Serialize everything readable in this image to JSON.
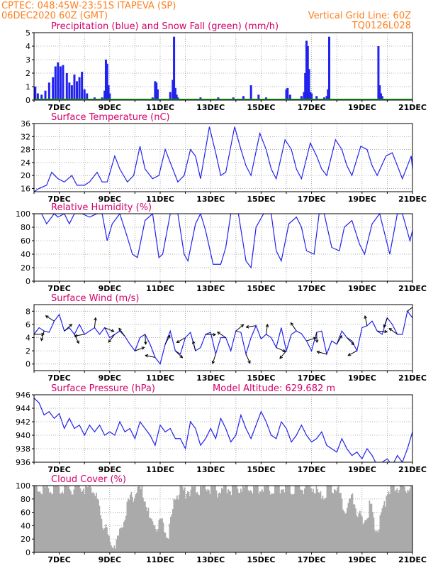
{
  "header": {
    "line1": "CPTEC:   048:45W-23:51S   ITAPEVA (SP)",
    "line2": "06DEC2020 60Z (GMT)",
    "grid_note": "Vertical Grid Line: 60Z",
    "code": "TQ0126L028"
  },
  "colors": {
    "header": "#ff7f1f",
    "title": "#d4006a",
    "series": "#2222ee",
    "snow": "#20a020",
    "cloud": "#aaaaaa",
    "grid": "#999999"
  },
  "x_axis": {
    "day_labels": [
      "7DEC",
      "9DEC",
      "11DEC",
      "13DEC",
      "15DEC",
      "17DEC",
      "19DEC",
      "21DEC"
    ],
    "range_days": [
      6,
      21
    ]
  },
  "chart_data": [
    {
      "id": "precip",
      "type": "bar",
      "title": "Precipitation (blue) and Snow Fall (green) (mm/h)",
      "ylim": [
        0,
        5
      ],
      "yticks": [
        0,
        1,
        2,
        3,
        4,
        5
      ],
      "series": [
        {
          "name": "Precipitation",
          "x_day": [
            6.05,
            6.15,
            6.3,
            6.45,
            6.6,
            6.75,
            6.85,
            6.95,
            7.05,
            7.15,
            7.3,
            7.4,
            7.5,
            7.6,
            7.7,
            7.8,
            7.9,
            8.0,
            8.1,
            8.4,
            8.7,
            8.8,
            8.85,
            8.9,
            8.95,
            9.0,
            10.7,
            10.8,
            10.85,
            10.9,
            11.4,
            11.5,
            11.55,
            11.6,
            11.65,
            11.7,
            12.6,
            12.9,
            13.3,
            13.6,
            13.9,
            14.3,
            14.6,
            14.9,
            15.1,
            15.2,
            16.0,
            16.05,
            16.15,
            16.6,
            16.7,
            16.75,
            16.8,
            16.85,
            16.9,
            16.95,
            17.0,
            17.2,
            17.5,
            17.6,
            17.65,
            17.7,
            19.65,
            19.7,
            19.75,
            19.8,
            20.6,
            20.8
          ],
          "values": [
            1.0,
            0.5,
            0.4,
            0.7,
            1.3,
            1.7,
            2.5,
            2.8,
            2.5,
            2.6,
            2.0,
            1.3,
            1.1,
            1.9,
            1.4,
            1.7,
            2.1,
            0.8,
            0.5,
            0.2,
            0.2,
            0.7,
            3.0,
            2.7,
            1.1,
            0.5,
            0.2,
            1.4,
            1.3,
            0.8,
            0.6,
            1.5,
            4.7,
            0.9,
            0.4,
            0.2,
            0.2,
            0.1,
            0.2,
            0.1,
            0.2,
            0.3,
            1.1,
            0.4,
            0.1,
            0.2,
            0.8,
            0.9,
            0.4,
            0.3,
            0.6,
            2.0,
            4.4,
            4.0,
            2.3,
            0.6,
            0.5,
            0.3,
            0.2,
            0.3,
            0.8,
            4.7,
            4.0,
            1.1,
            0.5,
            0.3,
            0.1,
            0.1
          ]
        },
        {
          "name": "Snow Fall",
          "x_day": [
            6,
            21
          ],
          "values": [
            0,
            0
          ]
        }
      ]
    },
    {
      "id": "temp",
      "type": "line",
      "title": "Surface Temperature (nC)",
      "ylim": [
        15,
        36
      ],
      "yticks": [
        16,
        20,
        24,
        28,
        32,
        36
      ],
      "x_day": [
        6,
        6.2,
        6.5,
        6.7,
        6.95,
        7.2,
        7.5,
        7.7,
        8.0,
        8.2,
        8.5,
        8.7,
        8.9,
        9.2,
        9.4,
        9.7,
        9.95,
        10.2,
        10.4,
        10.7,
        10.95,
        11.2,
        11.4,
        11.7,
        11.95,
        12.2,
        12.4,
        12.6,
        12.95,
        13.2,
        13.4,
        13.6,
        13.95,
        14.2,
        14.4,
        14.6,
        14.95,
        15.2,
        15.4,
        15.6,
        15.95,
        16.2,
        16.4,
        16.6,
        16.95,
        17.2,
        17.4,
        17.6,
        17.95,
        18.2,
        18.4,
        18.6,
        18.95,
        19.2,
        19.4,
        19.6,
        19.95,
        20.2,
        20.4,
        20.6,
        20.95,
        21
      ],
      "values": [
        15,
        16,
        17,
        21,
        19,
        18,
        20,
        17,
        17,
        18,
        21,
        18,
        18,
        26,
        22,
        18,
        20,
        29,
        22,
        19,
        20,
        28,
        24,
        18,
        20,
        28,
        26,
        19,
        35,
        27,
        20,
        21,
        35,
        28,
        23,
        20,
        33,
        28,
        22,
        19,
        31,
        28,
        22,
        19,
        30,
        26,
        22,
        20,
        31,
        28,
        23,
        20,
        29,
        28,
        23,
        20,
        26,
        27,
        23,
        19,
        26,
        22
      ]
    },
    {
      "id": "rh",
      "type": "line",
      "title": "Relative Humidity (%)",
      "ylim": [
        0,
        100
      ],
      "yticks": [
        0,
        20,
        40,
        60,
        80,
        100
      ],
      "x_day": [
        6,
        6.3,
        6.5,
        6.8,
        6.95,
        7.2,
        7.4,
        7.6,
        7.9,
        8.2,
        8.5,
        8.7,
        8.9,
        9.1,
        9.4,
        9.7,
        9.9,
        10.1,
        10.4,
        10.7,
        10.95,
        11.1,
        11.4,
        11.7,
        11.95,
        12.1,
        12.4,
        12.6,
        12.8,
        13.1,
        13.4,
        13.6,
        13.8,
        14.1,
        14.4,
        14.6,
        14.8,
        15.1,
        15.4,
        15.6,
        15.8,
        16.1,
        16.4,
        16.6,
        16.8,
        17.1,
        17.3,
        17.5,
        17.8,
        18.1,
        18.3,
        18.6,
        18.9,
        19.1,
        19.4,
        19.7,
        19.9,
        20.1,
        20.4,
        20.6,
        20.9,
        21
      ],
      "values": [
        100,
        100,
        85,
        100,
        95,
        100,
        85,
        100,
        100,
        95,
        100,
        100,
        60,
        85,
        100,
        65,
        40,
        35,
        90,
        100,
        35,
        40,
        100,
        100,
        40,
        30,
        85,
        100,
        75,
        25,
        25,
        50,
        100,
        100,
        30,
        20,
        80,
        100,
        100,
        45,
        30,
        85,
        95,
        80,
        45,
        40,
        100,
        100,
        50,
        45,
        80,
        90,
        55,
        40,
        85,
        100,
        70,
        40,
        100,
        100,
        60,
        75
      ]
    },
    {
      "id": "wind",
      "type": "line",
      "title": "Surface Wind (m/s)",
      "ylim": [
        -1,
        9
      ],
      "yticks": [
        0,
        2,
        4,
        6,
        8
      ],
      "x_day": [
        6,
        6.2,
        6.4,
        6.6,
        6.8,
        7.0,
        7.2,
        7.4,
        7.6,
        7.8,
        8.0,
        8.2,
        8.4,
        8.6,
        8.8,
        9.0,
        9.2,
        9.4,
        9.6,
        9.8,
        10.0,
        10.2,
        10.4,
        10.6,
        10.8,
        11.0,
        11.2,
        11.4,
        11.6,
        11.8,
        12.0,
        12.2,
        12.4,
        12.6,
        12.8,
        13.0,
        13.2,
        13.4,
        13.6,
        13.8,
        14.0,
        14.2,
        14.4,
        14.6,
        14.8,
        15.0,
        15.2,
        15.4,
        15.6,
        15.8,
        16.0,
        16.2,
        16.4,
        16.6,
        16.8,
        17.0,
        17.2,
        17.4,
        17.6,
        17.8,
        18.0,
        18.2,
        18.4,
        18.6,
        18.8,
        19.0,
        19.2,
        19.4,
        19.6,
        19.8,
        20.0,
        20.2,
        20.4,
        20.6,
        20.8,
        21.0
      ],
      "values": [
        4.5,
        5.5,
        5,
        4.8,
        6.5,
        7.5,
        5,
        5.5,
        4.5,
        6,
        4.5,
        5,
        5.5,
        4.5,
        5.5,
        4,
        4.5,
        5,
        4.2,
        3,
        2,
        4,
        4.5,
        3,
        1,
        0,
        3,
        5,
        2,
        1.5,
        4,
        4.8,
        2,
        2.5,
        4.5,
        4.8,
        1.5,
        4,
        4,
        2,
        5,
        4.8,
        1.5,
        4,
        5.8,
        3.8,
        4.5,
        4,
        2.5,
        5.5,
        2,
        4.5,
        5,
        4.6,
        3.5,
        2,
        4.8,
        5,
        1.5,
        3.5,
        3,
        5,
        4,
        3.5,
        2,
        5.5,
        5.8,
        6.5,
        5,
        4.5,
        7,
        6,
        4.5,
        4.5,
        8,
        7
      ]
    },
    {
      "id": "pressure",
      "type": "line",
      "title": "Surface Pressure (hPa)",
      "subtitle": "Model Altitude: 629.682 m",
      "ylim": [
        936,
        946
      ],
      "yticks": [
        936,
        938,
        940,
        942,
        944,
        946
      ],
      "x_day": [
        6,
        6.2,
        6.4,
        6.6,
        6.8,
        7.0,
        7.2,
        7.4,
        7.6,
        7.8,
        8.0,
        8.2,
        8.4,
        8.6,
        8.8,
        9.0,
        9.2,
        9.4,
        9.6,
        9.8,
        10.0,
        10.2,
        10.4,
        10.6,
        10.8,
        11.0,
        11.2,
        11.4,
        11.6,
        11.8,
        12.0,
        12.2,
        12.4,
        12.6,
        12.8,
        13.0,
        13.2,
        13.4,
        13.6,
        13.8,
        14.0,
        14.2,
        14.4,
        14.6,
        14.8,
        15.0,
        15.2,
        15.4,
        15.6,
        15.8,
        16.0,
        16.2,
        16.4,
        16.6,
        16.8,
        17.0,
        17.2,
        17.4,
        17.6,
        17.8,
        18.0,
        18.2,
        18.4,
        18.6,
        18.8,
        19.0,
        19.2,
        19.4,
        19.6,
        19.8,
        20.0,
        20.2,
        20.4,
        20.6,
        20.8,
        21.0
      ],
      "values": [
        945.5,
        944.8,
        943,
        943.5,
        942.5,
        943.2,
        941,
        942.5,
        941,
        941.5,
        940,
        941.5,
        940.5,
        941.5,
        940,
        940.5,
        940,
        942,
        940.5,
        941,
        939.5,
        942,
        941,
        940,
        938.5,
        941.5,
        940.5,
        941,
        939.5,
        939.5,
        938,
        942,
        941,
        938.5,
        939.5,
        941,
        939.5,
        942.5,
        941,
        939,
        940,
        943,
        941,
        939.5,
        941.5,
        943.5,
        942,
        940,
        939.5,
        942,
        941,
        939,
        940,
        941.5,
        940,
        939,
        939.5,
        940.5,
        938.5,
        938,
        937.5,
        939.5,
        938,
        937,
        937.5,
        936.5,
        938,
        937,
        935.5,
        936,
        936.5,
        935.5,
        937,
        936,
        938,
        940.5
      ]
    },
    {
      "id": "cloud",
      "type": "area",
      "title": "Cloud Cover (%)",
      "ylim": [
        0,
        100
      ],
      "yticks": [
        0,
        20,
        40,
        60,
        80,
        100
      ],
      "x_day": [
        6,
        6.5,
        7.0,
        7.5,
        8.0,
        8.3,
        8.6,
        9.0,
        9.3,
        9.6,
        10.0,
        10.3,
        10.6,
        11.0,
        11.3,
        11.6,
        12.0,
        12.3,
        12.6,
        13.0,
        13.3,
        13.6,
        14.0,
        14.3,
        14.6,
        15.0,
        15.3,
        15.6,
        16.0,
        16.3,
        16.6,
        17.0,
        17.3,
        17.6,
        18.0,
        18.3,
        18.6,
        19.0,
        19.3,
        19.6,
        20.0,
        20.3,
        20.6,
        21.0
      ],
      "values": [
        98,
        97,
        99,
        98,
        96,
        98,
        60,
        10,
        20,
        60,
        95,
        92,
        40,
        45,
        25,
        90,
        92,
        95,
        96,
        99,
        90,
        95,
        98,
        96,
        99,
        97,
        98,
        99,
        97,
        96,
        98,
        99,
        80,
        95,
        98,
        60,
        85,
        40,
        70,
        30,
        96,
        98,
        97,
        99
      ]
    }
  ]
}
